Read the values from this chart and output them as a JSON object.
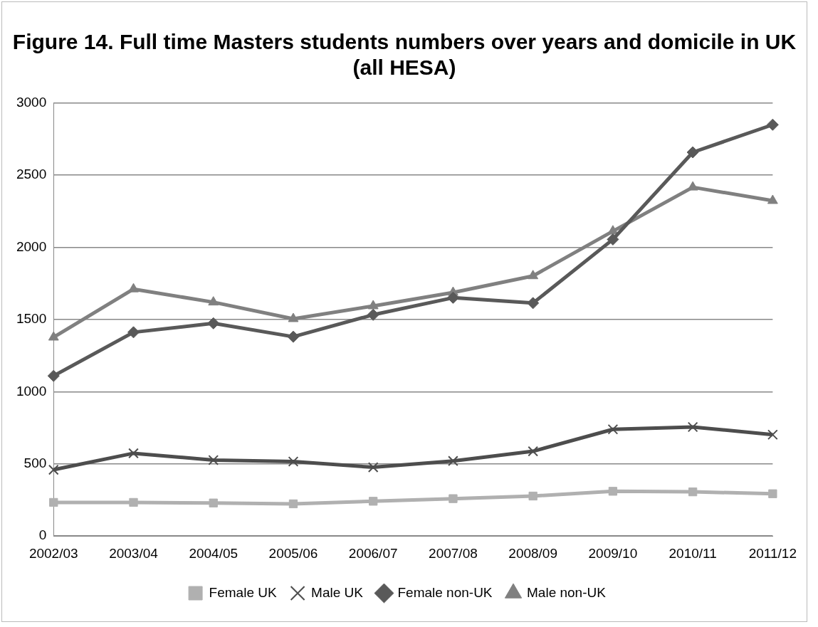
{
  "chart_data": {
    "type": "line",
    "title": "Figure 14. Full time Masters students numbers over years and domicile in UK (all HESA)",
    "categories": [
      "2002/03",
      "2003/04",
      "2004/05",
      "2005/06",
      "2006/07",
      "2007/08",
      "2008/09",
      "2009/10",
      "2010/11",
      "2011/12"
    ],
    "series": [
      {
        "name": "Female UK",
        "color": "#b0b0b0",
        "marker": "square",
        "values": [
          233,
          233,
          229,
          223,
          241,
          259,
          277,
          310,
          306,
          293
        ]
      },
      {
        "name": "Male UK",
        "color": "#4d4d4d",
        "marker": "cross",
        "values": [
          459,
          573,
          526,
          516,
          476,
          520,
          587,
          739,
          755,
          702
        ]
      },
      {
        "name": "Female non-UK",
        "color": "#595959",
        "marker": "diamond",
        "values": [
          1109,
          1411,
          1473,
          1380,
          1532,
          1650,
          1613,
          2054,
          2657,
          2848
        ]
      },
      {
        "name": "Male non-UK",
        "color": "#808080",
        "marker": "triangle",
        "values": [
          1376,
          1710,
          1619,
          1504,
          1593,
          1686,
          1801,
          2111,
          2415,
          2322
        ]
      }
    ],
    "ylim": [
      0,
      3000
    ],
    "yticks": [
      0,
      500,
      1000,
      1500,
      2000,
      2500,
      3000
    ],
    "grid": "y",
    "legend": "bottom",
    "line_style": "solid"
  }
}
